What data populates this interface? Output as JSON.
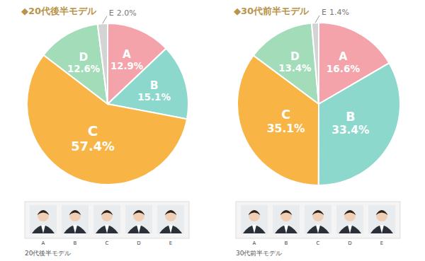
{
  "chart_data": [
    {
      "type": "pie",
      "title": "◆20代後半モデル",
      "categories": [
        "A",
        "B",
        "C",
        "D",
        "E"
      ],
      "values": [
        12.9,
        15.1,
        57.4,
        12.6,
        2.0
      ],
      "value_labels": [
        "12.9%",
        "15.1%",
        "57.4%",
        "12.6%",
        "2.0%"
      ],
      "colors": [
        "#f5a3aa",
        "#8dd8cd",
        "#f9b446",
        "#a3dcb9",
        "#d3d3d3"
      ],
      "data_labels": true,
      "caption": "20代後半モデル"
    },
    {
      "type": "pie",
      "title": "◆30代前半モデル",
      "categories": [
        "A",
        "B",
        "C",
        "D",
        "E"
      ],
      "values": [
        16.6,
        33.4,
        35.1,
        13.4,
        1.4
      ],
      "value_labels": [
        "16.6%",
        "33.4%",
        "35.1%",
        "13.4%",
        "1.4%"
      ],
      "colors": [
        "#f5a3aa",
        "#8dd8cd",
        "#f9b446",
        "#a3dcb9",
        "#d3d3d3"
      ],
      "data_labels": true,
      "caption": "30代前半モデル"
    }
  ]
}
